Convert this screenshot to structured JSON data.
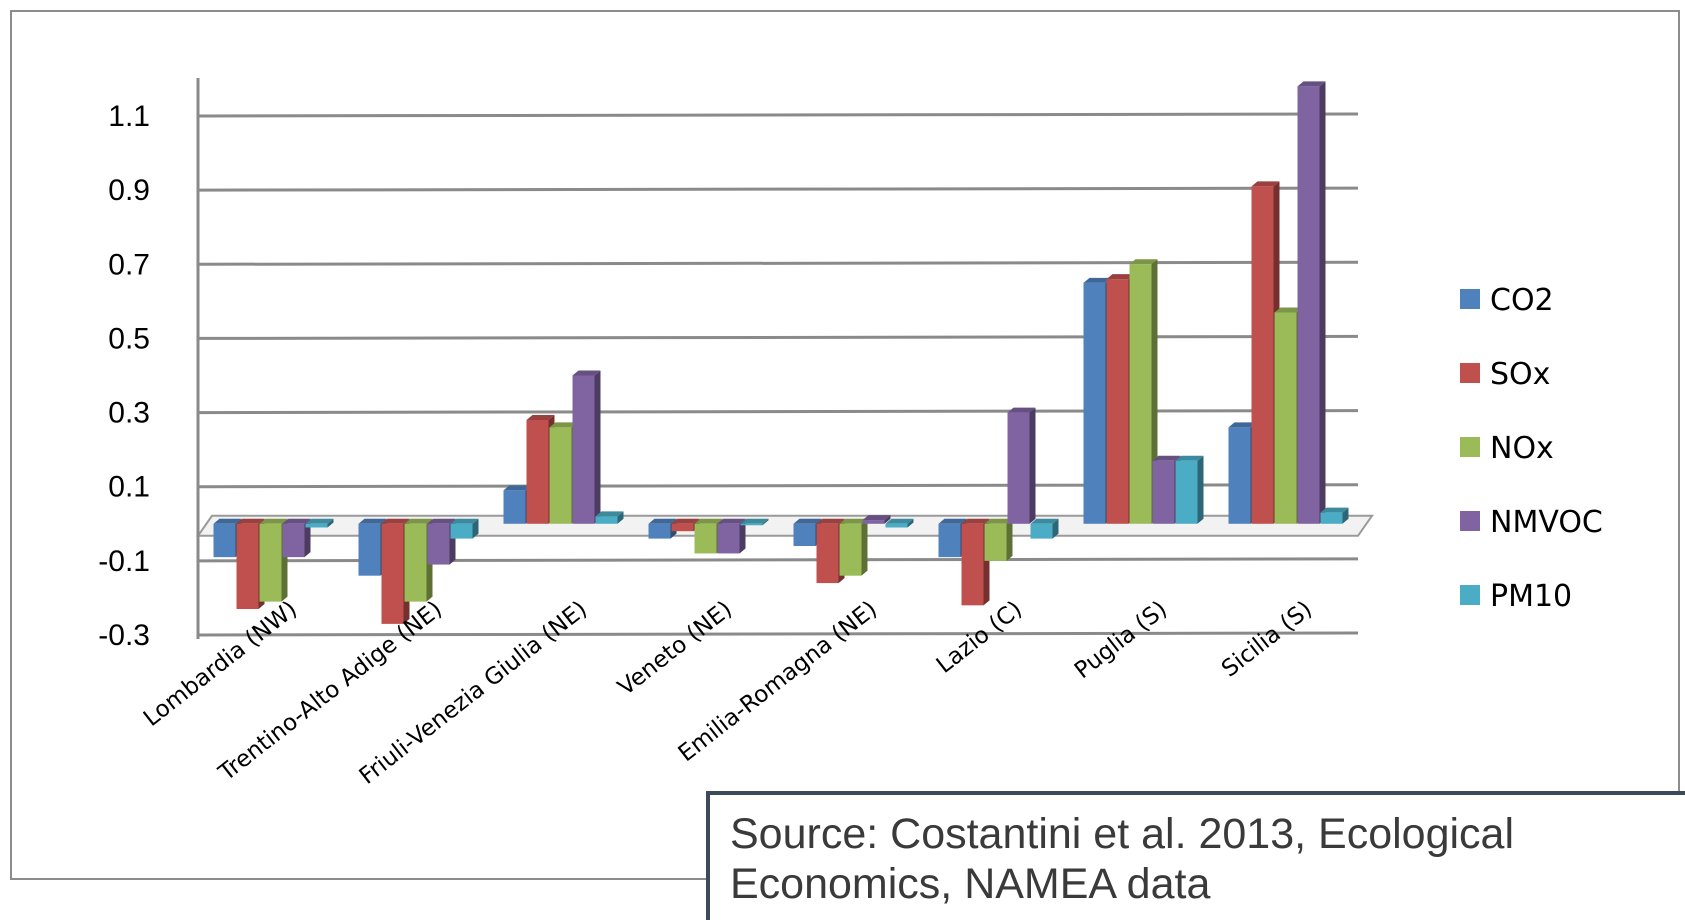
{
  "chart_data": {
    "type": "bar",
    "title": "",
    "xlabel": "",
    "ylabel": "",
    "ylim": [
      -0.3,
      1.2
    ],
    "y_ticks": [
      "1.1",
      "0.9",
      "0.7",
      "0.5",
      "0.3",
      "0.1",
      "-0.1",
      "-0.3"
    ],
    "y_tick_values": [
      1.1,
      0.9,
      0.7,
      0.5,
      0.3,
      0.1,
      -0.1,
      -0.3
    ],
    "grid": true,
    "legend_position": "right",
    "categories": [
      "Lombardia (NW)",
      "Trentino-Alto Adige (NE)",
      "Friuli-Venezia Giulia (NE)",
      "Veneto (NE)",
      "Emilia-Romagna (NE)",
      "Lazio (C)",
      "Puglia (S)",
      "Sicilia (S)"
    ],
    "series": [
      {
        "name": "CO2",
        "color": "#4f81bd",
        "values": [
          -0.09,
          -0.14,
          0.09,
          -0.04,
          -0.06,
          -0.09,
          0.65,
          0.26
        ]
      },
      {
        "name": "SOx",
        "color": "#c0504d",
        "values": [
          -0.23,
          -0.27,
          0.28,
          -0.02,
          -0.16,
          -0.22,
          0.66,
          0.91
        ]
      },
      {
        "name": "NOx",
        "color": "#9bbb59",
        "values": [
          -0.21,
          -0.21,
          0.26,
          -0.08,
          -0.14,
          -0.1,
          0.7,
          0.57
        ]
      },
      {
        "name": "NMVOC",
        "color": "#8064a2",
        "values": [
          -0.09,
          -0.11,
          0.4,
          -0.08,
          0.01,
          0.3,
          0.17,
          1.18
        ]
      },
      {
        "name": "PM10",
        "color": "#4bacc6",
        "values": [
          -0.01,
          -0.04,
          0.02,
          0.0,
          -0.01,
          -0.04,
          0.17,
          0.03
        ]
      }
    ]
  },
  "source": {
    "line1": "Source: Costantini et al. 2013, Ecological",
    "line2": "Economics, NAMEA data"
  }
}
